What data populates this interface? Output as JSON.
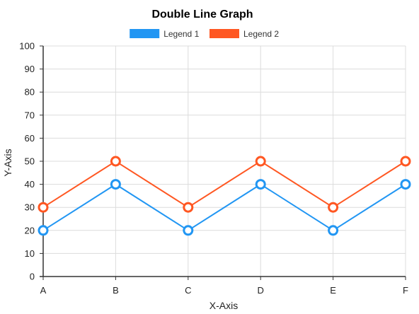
{
  "chart_data": {
    "type": "line",
    "title": "Double Line Graph",
    "xlabel": "X-Axis",
    "ylabel": "Y-Axis",
    "categories": [
      "A",
      "B",
      "C",
      "D",
      "E",
      "F"
    ],
    "ylim": [
      0,
      100
    ],
    "yticks": [
      0,
      10,
      20,
      30,
      40,
      50,
      60,
      70,
      80,
      90,
      100
    ],
    "grid": true,
    "legend_position": "top",
    "series": [
      {
        "name": "Legend 1",
        "color": "#2196f3",
        "values": [
          20,
          40,
          20,
          40,
          20,
          40
        ]
      },
      {
        "name": "Legend 2",
        "color": "#ff5722",
        "values": [
          30,
          50,
          30,
          50,
          30,
          50
        ]
      }
    ]
  }
}
